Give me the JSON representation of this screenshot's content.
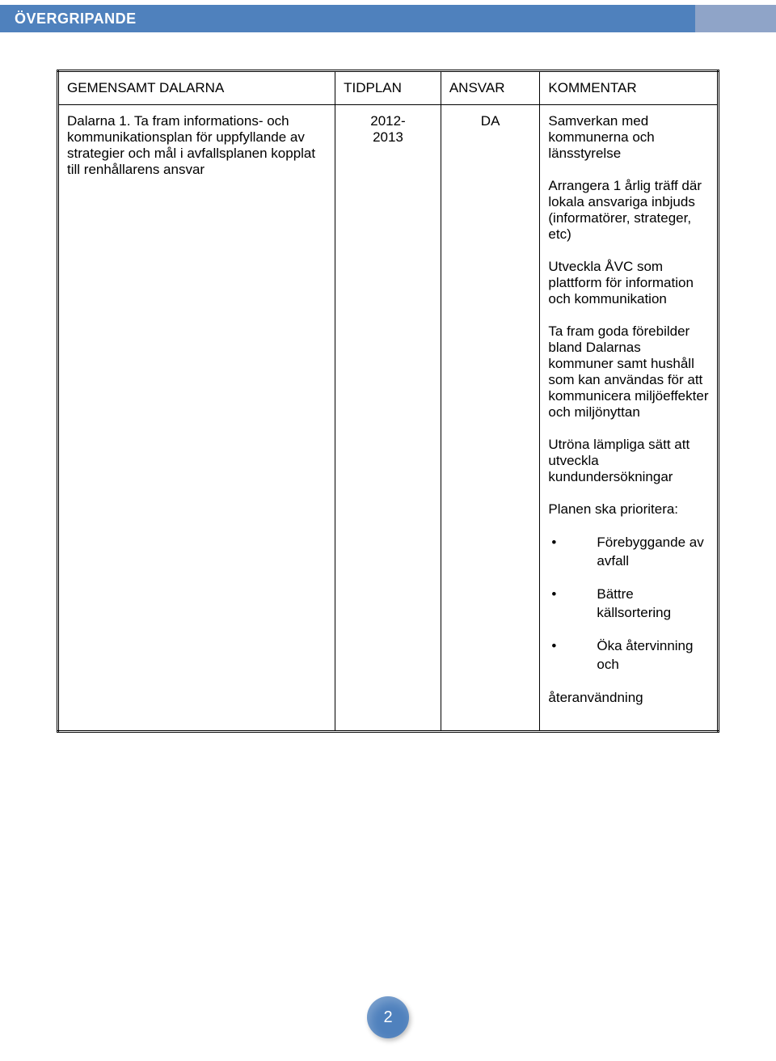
{
  "colors": {
    "header_blue": "#4f81bd",
    "header_grey": "#8fa4c8",
    "text": "#000000",
    "header_text": "#ffffff",
    "page_bg": "#ffffff",
    "badge_bg": "#4f81bd",
    "badge_text": "#ffffff",
    "table_border": "#000000"
  },
  "typography": {
    "base_font": "Arial",
    "header_fontsize_pt": 14,
    "body_fontsize_pt": 12.5,
    "badge_fontsize_pt": 15
  },
  "header": {
    "title": "ÖVERGRIPANDE"
  },
  "table": {
    "headers": {
      "c1": "GEMENSAMT DALARNA",
      "c2": "TIDPLAN",
      "c3": "ANSVAR",
      "c4": "KOMMENTAR"
    },
    "row": {
      "c1": "Dalarna 1.  Ta fram informations- och kommunikationsplan för uppfyllande av strategier och mål i avfallsplanen kopplat till renhållarens ansvar",
      "c2a": "2012-",
      "c2b": "2013",
      "c3": "DA",
      "c4": {
        "p1": "Samverkan med kommunerna och länsstyrelse",
        "p2": "Arrangera 1 årlig träff där lokala ansvariga inbjuds (informatörer, strateger, etc)",
        "p3": "Utveckla ÅVC som plattform för information och kommunikation",
        "p4": "Ta fram goda förebilder bland Dalarnas kommuner samt hushåll som kan användas för att kommunicera miljöeffekter och miljönyttan",
        "p5": "Utröna lämpliga sätt att utveckla kundundersökningar",
        "p6": "Planen ska prioritera:",
        "b1": "Förebyggande av avfall",
        "b2": "Bättre källsortering",
        "b3_line1": "Öka återvinning och",
        "b3_line2": "återanvändning"
      }
    }
  },
  "page_number": "2"
}
